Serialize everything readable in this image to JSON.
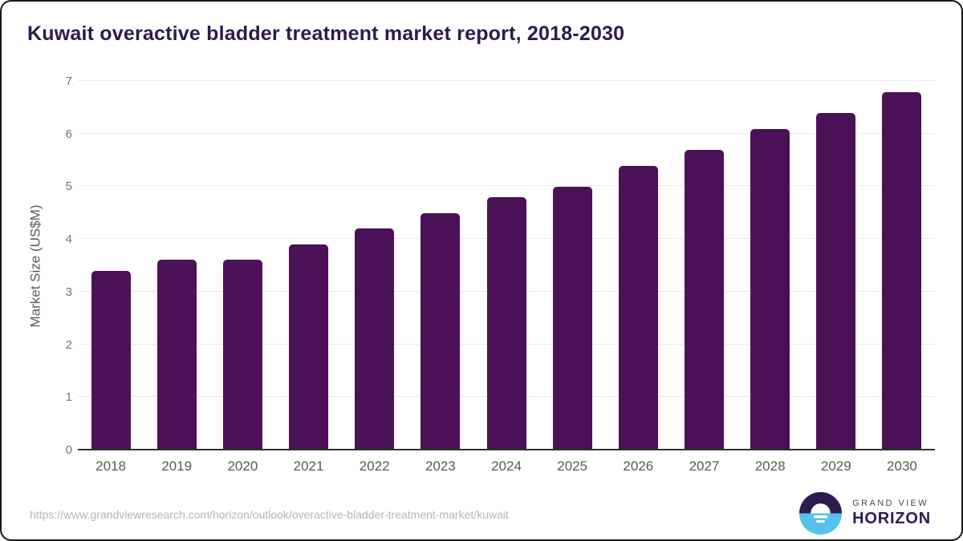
{
  "title": "Kuwait overactive bladder treatment market report, 2018-2030",
  "chart_data": {
    "type": "bar",
    "categories": [
      "2018",
      "2019",
      "2020",
      "2021",
      "2022",
      "2023",
      "2024",
      "2025",
      "2026",
      "2027",
      "2028",
      "2029",
      "2030"
    ],
    "values": [
      3.4,
      3.6,
      3.6,
      3.9,
      4.2,
      4.5,
      4.8,
      5.0,
      5.4,
      5.7,
      6.1,
      6.4,
      6.8
    ],
    "title": "Kuwait overactive bladder treatment market report, 2018-2030",
    "xlabel": "",
    "ylabel": "Market Size (US$M)",
    "ylim": [
      0,
      7
    ],
    "yticks": [
      0,
      1,
      2,
      3,
      4,
      5,
      6,
      7
    ],
    "grid": true,
    "legend": "none",
    "bar_color": "#4a1156"
  },
  "footer": {
    "source_url": "https://www.grandviewresearch.com/horizon/outlook/overactive-bladder-treatment-market/kuwait",
    "logo": {
      "line1": "GRAND VIEW",
      "line2": "HORIZON"
    }
  },
  "colors": {
    "bar": "#4a1156",
    "title_text": "#2e1a4d",
    "axis_line": "#2f2f2f",
    "gridline": "#e9e9e9",
    "tick_text": "#757575",
    "logo_dark": "#2e1b4e",
    "logo_blue": "#55c3ee",
    "url_text": "#b4b4b4"
  }
}
